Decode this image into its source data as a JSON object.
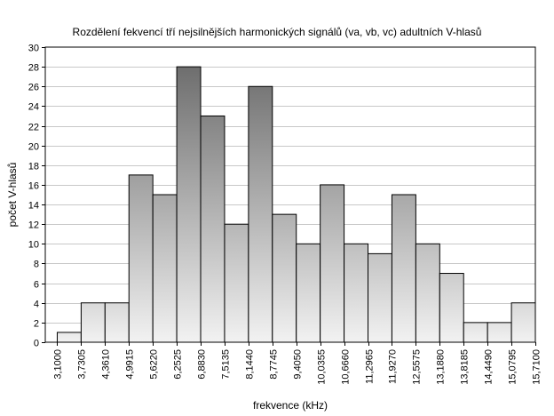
{
  "chart_data": {
    "type": "bar",
    "title": "Rozdělení fekvencí tří nejsilnějších harmonických signálů (va, vb, vc) adultních V-hlasů",
    "xlabel": "frekvence (kHz)",
    "ylabel": "počet V-hlasů",
    "ylim": [
      0,
      30
    ],
    "y_ticks": [
      0,
      2,
      4,
      6,
      8,
      10,
      12,
      14,
      16,
      18,
      20,
      22,
      24,
      26,
      28,
      30
    ],
    "bin_edges": [
      "3,1000",
      "3,7305",
      "4,3610",
      "4,9915",
      "5,6220",
      "6,2525",
      "6,8830",
      "7,5135",
      "8,1440",
      "8,7745",
      "9,4050",
      "10,0355",
      "10,6660",
      "11,2965",
      "11,9270",
      "12,5575",
      "13,1880",
      "13,8185",
      "14,4490",
      "15,0795",
      "15,7100"
    ],
    "values": [
      1,
      4,
      4,
      17,
      15,
      28,
      23,
      12,
      26,
      13,
      10,
      16,
      10,
      9,
      15,
      10,
      7,
      2,
      2,
      4
    ],
    "grid": true,
    "legend": "none",
    "bar_fill_light": "#f2f2f2",
    "bar_fill_dark": "#6e6e6e",
    "bar_stroke": "#000000"
  }
}
